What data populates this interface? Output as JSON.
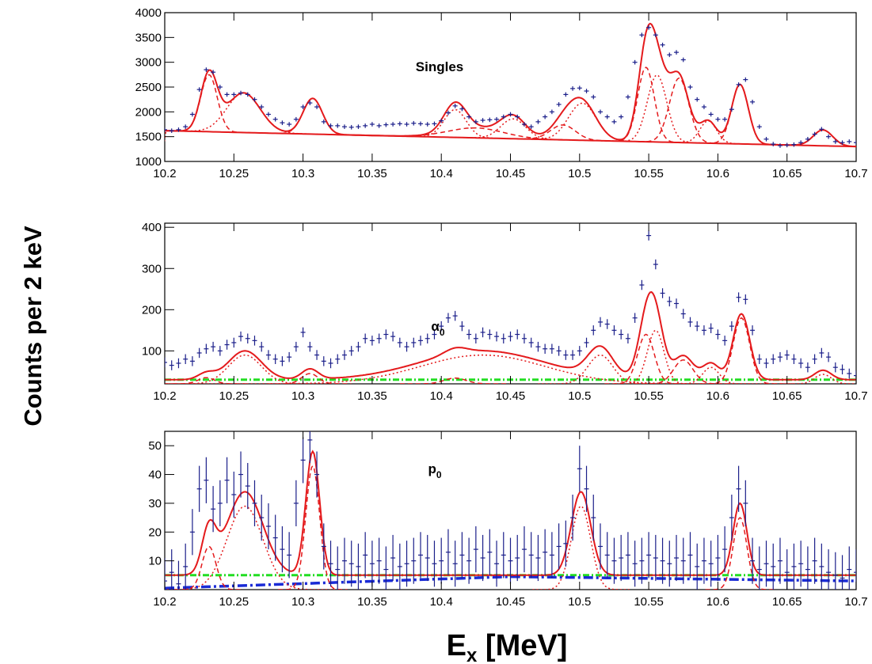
{
  "shared": {
    "xlabel_main": "E",
    "xlabel_sub": "x",
    "xlabel_unit": " [MeV]",
    "ylabel": "Counts per 2 keV"
  },
  "chart_data": [
    {
      "type": "scatter",
      "panel_label": "Singles",
      "xlim": [
        10.2,
        10.7
      ],
      "ylim": [
        1000,
        4000
      ],
      "x_ticks": [
        10.2,
        10.25,
        10.3,
        10.35,
        10.4,
        10.45,
        10.5,
        10.55,
        10.6,
        10.65,
        10.7
      ],
      "y_ticks": [
        1000,
        1500,
        2000,
        2500,
        3000,
        3500,
        4000
      ],
      "x_tick_labels": [
        "10.2",
        "10.25",
        "10.3",
        "10.35",
        "10.4",
        "10.45",
        "10.5",
        "10.55",
        "10.6",
        "10.65",
        "10.7"
      ],
      "y_tick_labels": [
        "1000",
        "1500",
        "2000",
        "2500",
        "3000",
        "3500",
        "4000"
      ],
      "background": {
        "x": [
          10.2,
          10.7
        ],
        "y": [
          1620,
          1300
        ]
      },
      "peaks": [
        {
          "center": 10.232,
          "sigma": 0.006,
          "amplitude": 1150
        },
        {
          "center": 10.257,
          "sigma": 0.012,
          "amplitude": 800
        },
        {
          "center": 10.307,
          "sigma": 0.007,
          "amplitude": 720
        },
        {
          "center": 10.41,
          "sigma": 0.008,
          "amplitude": 560
        },
        {
          "center": 10.425,
          "sigma": 0.02,
          "amplitude": 200
        },
        {
          "center": 10.452,
          "sigma": 0.009,
          "amplitude": 400
        },
        {
          "center": 10.488,
          "sigma": 0.009,
          "amplitude": 300
        },
        {
          "center": 10.502,
          "sigma": 0.01,
          "amplitude": 750
        },
        {
          "center": 10.548,
          "sigma": 0.006,
          "amplitude": 1500
        },
        {
          "center": 10.556,
          "sigma": 0.007,
          "amplitude": 1350
        },
        {
          "center": 10.572,
          "sigma": 0.007,
          "amplitude": 1300
        },
        {
          "center": 10.593,
          "sigma": 0.006,
          "amplitude": 450
        },
        {
          "center": 10.616,
          "sigma": 0.006,
          "amplitude": 1200
        },
        {
          "center": 10.676,
          "sigma": 0.007,
          "amplitude": 320
        }
      ],
      "data_y_error": 45,
      "data_x": [
        10.2,
        10.205,
        10.21,
        10.215,
        10.22,
        10.225,
        10.23,
        10.235,
        10.24,
        10.245,
        10.25,
        10.255,
        10.26,
        10.265,
        10.27,
        10.275,
        10.28,
        10.285,
        10.29,
        10.295,
        10.3,
        10.305,
        10.31,
        10.315,
        10.32,
        10.325,
        10.33,
        10.335,
        10.34,
        10.345,
        10.35,
        10.355,
        10.36,
        10.365,
        10.37,
        10.375,
        10.38,
        10.385,
        10.39,
        10.395,
        10.4,
        10.405,
        10.41,
        10.415,
        10.42,
        10.425,
        10.43,
        10.435,
        10.44,
        10.445,
        10.45,
        10.455,
        10.46,
        10.465,
        10.47,
        10.475,
        10.48,
        10.485,
        10.49,
        10.495,
        10.5,
        10.505,
        10.51,
        10.515,
        10.52,
        10.525,
        10.53,
        10.535,
        10.54,
        10.545,
        10.55,
        10.555,
        10.56,
        10.565,
        10.57,
        10.575,
        10.58,
        10.585,
        10.59,
        10.595,
        10.6,
        10.605,
        10.61,
        10.615,
        10.62,
        10.625,
        10.63,
        10.635,
        10.64,
        10.645,
        10.65,
        10.655,
        10.66,
        10.665,
        10.67,
        10.675,
        10.68,
        10.685,
        10.69,
        10.695,
        10.7
      ],
      "data_y": [
        1640,
        1620,
        1640,
        1700,
        1950,
        2450,
        2850,
        2800,
        2500,
        2350,
        2350,
        2380,
        2350,
        2250,
        2100,
        1950,
        1850,
        1780,
        1750,
        1850,
        2100,
        2180,
        2100,
        1800,
        1720,
        1720,
        1700,
        1690,
        1700,
        1720,
        1750,
        1720,
        1740,
        1750,
        1760,
        1750,
        1770,
        1760,
        1750,
        1760,
        1820,
        1980,
        2120,
        2060,
        1900,
        1800,
        1830,
        1840,
        1850,
        1900,
        1950,
        1900,
        1750,
        1700,
        1800,
        1900,
        2000,
        2150,
        2350,
        2470,
        2480,
        2420,
        2300,
        2000,
        1900,
        1800,
        1900,
        2300,
        3000,
        3550,
        3700,
        3550,
        3350,
        3150,
        3200,
        3050,
        2500,
        2250,
        2100,
        1950,
        1850,
        1850,
        2050,
        2550,
        2650,
        2200,
        1700,
        1450,
        1350,
        1320,
        1330,
        1340,
        1380,
        1450,
        1550,
        1650,
        1500,
        1400,
        1380,
        1400,
        1380
      ]
    },
    {
      "type": "scatter",
      "panel_label": "α",
      "panel_label_sub": "0",
      "xlim": [
        10.2,
        10.7
      ],
      "ylim": [
        20,
        410
      ],
      "x_ticks": [
        10.2,
        10.25,
        10.3,
        10.35,
        10.4,
        10.45,
        10.5,
        10.55,
        10.6,
        10.65,
        10.7
      ],
      "y_ticks": [
        100,
        200,
        300,
        400
      ],
      "x_tick_labels": [
        "10.2",
        "10.25",
        "10.3",
        "10.35",
        "10.4",
        "10.45",
        "10.5",
        "10.55",
        "10.6",
        "10.65",
        "10.7"
      ],
      "y_tick_labels": [
        "100",
        "200",
        "300",
        "400"
      ],
      "background": {
        "x": [
          10.2,
          10.7
        ],
        "y": [
          30,
          30
        ]
      },
      "peaks": [
        {
          "center": 10.23,
          "sigma": 0.006,
          "amplitude": 15
        },
        {
          "center": 10.258,
          "sigma": 0.012,
          "amplitude": 70
        },
        {
          "center": 10.305,
          "sigma": 0.006,
          "amplitude": 25
        },
        {
          "center": 10.43,
          "sigma": 0.045,
          "amplitude": 70
        },
        {
          "center": 10.41,
          "sigma": 0.008,
          "amplitude": 14
        },
        {
          "center": 10.515,
          "sigma": 0.009,
          "amplitude": 70
        },
        {
          "center": 10.548,
          "sigma": 0.006,
          "amplitude": 120
        },
        {
          "center": 10.555,
          "sigma": 0.006,
          "amplitude": 130
        },
        {
          "center": 10.575,
          "sigma": 0.007,
          "amplitude": 58
        },
        {
          "center": 10.595,
          "sigma": 0.006,
          "amplitude": 40
        },
        {
          "center": 10.617,
          "sigma": 0.006,
          "amplitude": 160
        },
        {
          "center": 10.676,
          "sigma": 0.006,
          "amplitude": 23
        }
      ],
      "data_y_error": 12,
      "data_x": [
        10.2,
        10.205,
        10.21,
        10.215,
        10.22,
        10.225,
        10.23,
        10.235,
        10.24,
        10.245,
        10.25,
        10.255,
        10.26,
        10.265,
        10.27,
        10.275,
        10.28,
        10.285,
        10.29,
        10.295,
        10.3,
        10.305,
        10.31,
        10.315,
        10.32,
        10.325,
        10.33,
        10.335,
        10.34,
        10.345,
        10.35,
        10.355,
        10.36,
        10.365,
        10.37,
        10.375,
        10.38,
        10.385,
        10.39,
        10.395,
        10.4,
        10.405,
        10.41,
        10.415,
        10.42,
        10.425,
        10.43,
        10.435,
        10.44,
        10.445,
        10.45,
        10.455,
        10.46,
        10.465,
        10.47,
        10.475,
        10.48,
        10.485,
        10.49,
        10.495,
        10.5,
        10.505,
        10.51,
        10.515,
        10.52,
        10.525,
        10.53,
        10.535,
        10.54,
        10.545,
        10.55,
        10.555,
        10.56,
        10.565,
        10.57,
        10.575,
        10.58,
        10.585,
        10.59,
        10.595,
        10.6,
        10.605,
        10.61,
        10.615,
        10.62,
        10.625,
        10.63,
        10.635,
        10.64,
        10.645,
        10.65,
        10.655,
        10.66,
        10.665,
        10.67,
        10.675,
        10.68,
        10.685,
        10.69,
        10.695,
        10.7
      ],
      "data_y": [
        72,
        65,
        70,
        80,
        75,
        95,
        105,
        110,
        100,
        115,
        120,
        135,
        130,
        125,
        110,
        90,
        80,
        75,
        85,
        110,
        145,
        110,
        90,
        75,
        70,
        80,
        90,
        100,
        110,
        130,
        125,
        130,
        140,
        135,
        120,
        110,
        120,
        125,
        130,
        140,
        160,
        180,
        185,
        160,
        140,
        130,
        145,
        140,
        135,
        130,
        135,
        140,
        130,
        120,
        110,
        105,
        105,
        100,
        90,
        90,
        100,
        120,
        150,
        170,
        165,
        150,
        140,
        130,
        180,
        260,
        380,
        310,
        240,
        220,
        215,
        190,
        170,
        160,
        150,
        155,
        140,
        125,
        160,
        230,
        225,
        150,
        80,
        70,
        80,
        85,
        90,
        80,
        70,
        60,
        80,
        95,
        85,
        60,
        55,
        45,
        40
      ]
    },
    {
      "type": "scatter",
      "panel_label": "p",
      "panel_label_sub": "0",
      "xlim": [
        10.2,
        10.7
      ],
      "ylim": [
        0,
        55
      ],
      "x_ticks": [
        10.2,
        10.25,
        10.3,
        10.35,
        10.4,
        10.45,
        10.5,
        10.55,
        10.6,
        10.65,
        10.7
      ],
      "y_ticks": [
        10,
        20,
        30,
        40,
        50
      ],
      "x_tick_labels": [
        "10.2",
        "10.25",
        "10.3",
        "10.35",
        "10.4",
        "10.45",
        "10.5",
        "10.55",
        "10.6",
        "10.65",
        "10.7"
      ],
      "y_tick_labels": [
        "10",
        "20",
        "30",
        "40",
        "50"
      ],
      "background": {
        "x": [
          10.2,
          10.7
        ],
        "y": [
          5,
          5
        ]
      },
      "background2": {
        "x": [
          10.2,
          10.45,
          10.7
        ],
        "y": [
          0.5,
          4.5,
          3
        ]
      },
      "peaks": [
        {
          "center": 10.232,
          "sigma": 0.005,
          "amplitude": 15
        },
        {
          "center": 10.258,
          "sigma": 0.013,
          "amplitude": 29
        },
        {
          "center": 10.307,
          "sigma": 0.005,
          "amplitude": 43
        },
        {
          "center": 10.501,
          "sigma": 0.007,
          "amplitude": 29
        },
        {
          "center": 10.616,
          "sigma": 0.005,
          "amplitude": 25
        }
      ],
      "data_y_error": 8,
      "data_x": [
        10.2,
        10.205,
        10.21,
        10.215,
        10.22,
        10.225,
        10.23,
        10.235,
        10.24,
        10.245,
        10.25,
        10.255,
        10.26,
        10.265,
        10.27,
        10.275,
        10.28,
        10.285,
        10.29,
        10.295,
        10.3,
        10.305,
        10.31,
        10.315,
        10.32,
        10.325,
        10.33,
        10.335,
        10.34,
        10.345,
        10.35,
        10.355,
        10.36,
        10.365,
        10.37,
        10.375,
        10.38,
        10.385,
        10.39,
        10.395,
        10.4,
        10.405,
        10.41,
        10.415,
        10.42,
        10.425,
        10.43,
        10.435,
        10.44,
        10.445,
        10.45,
        10.455,
        10.46,
        10.465,
        10.47,
        10.475,
        10.48,
        10.485,
        10.49,
        10.495,
        10.5,
        10.505,
        10.51,
        10.515,
        10.52,
        10.525,
        10.53,
        10.535,
        10.54,
        10.545,
        10.55,
        10.555,
        10.56,
        10.565,
        10.57,
        10.575,
        10.58,
        10.585,
        10.59,
        10.595,
        10.6,
        10.605,
        10.61,
        10.615,
        10.62,
        10.625,
        10.63,
        10.635,
        10.64,
        10.645,
        10.65,
        10.655,
        10.66,
        10.665,
        10.67,
        10.675,
        10.68,
        10.685,
        10.69,
        10.695,
        10.7
      ],
      "data_y": [
        3,
        6,
        2,
        8,
        20,
        35,
        38,
        28,
        30,
        38,
        33,
        40,
        36,
        30,
        25,
        22,
        18,
        14,
        12,
        30,
        45,
        52,
        40,
        15,
        9,
        7,
        10,
        9,
        8,
        12,
        9,
        10,
        7,
        11,
        8,
        9,
        10,
        12,
        11,
        9,
        10,
        13,
        9,
        12,
        10,
        14,
        11,
        13,
        9,
        12,
        10,
        11,
        14,
        12,
        11,
        13,
        12,
        15,
        16,
        25,
        42,
        35,
        25,
        15,
        12,
        10,
        11,
        12,
        9,
        10,
        12,
        11,
        10,
        9,
        11,
        10,
        12,
        8,
        10,
        9,
        11,
        14,
        25,
        35,
        30,
        10,
        7,
        9,
        8,
        10,
        6,
        8,
        9,
        7,
        10,
        8,
        6,
        5,
        4,
        7,
        6
      ]
    }
  ]
}
